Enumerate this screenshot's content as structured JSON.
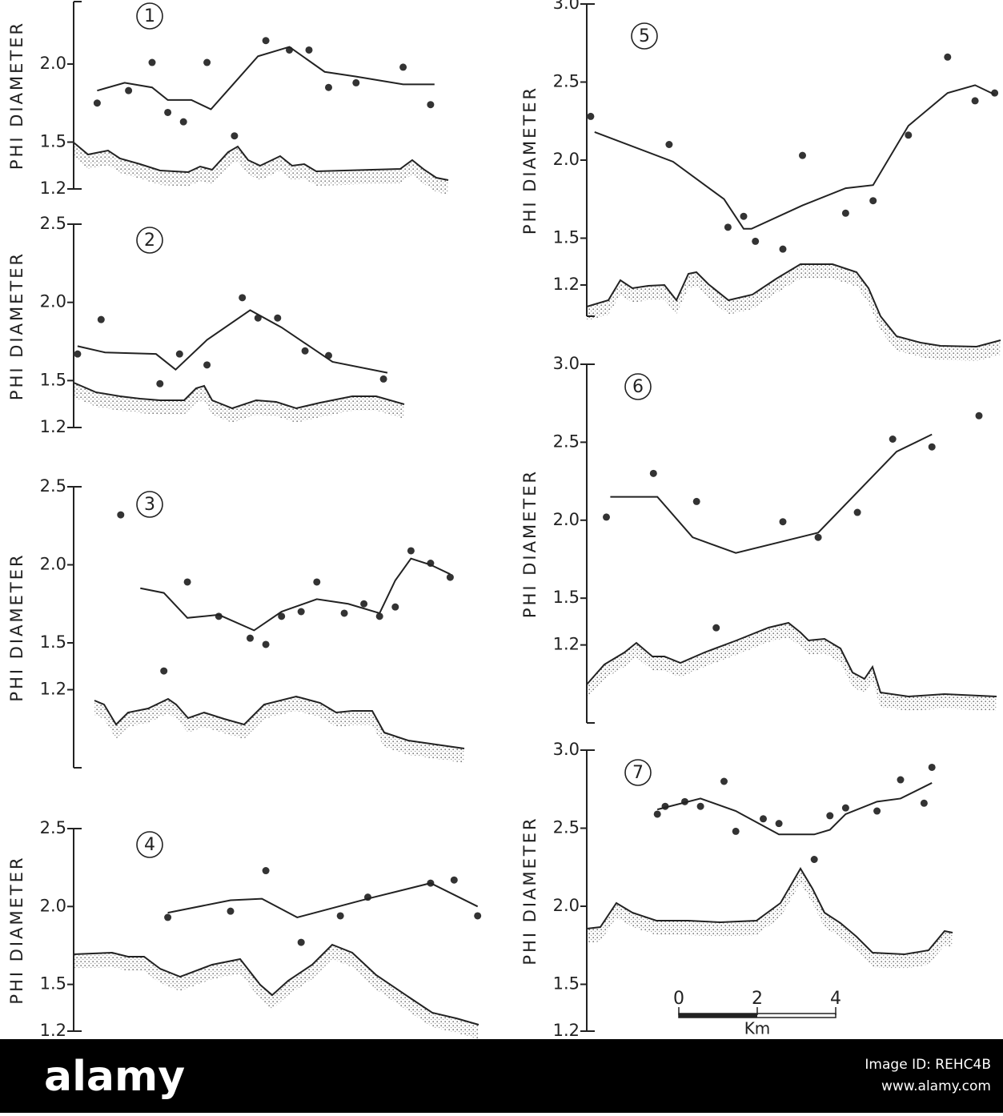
{
  "chart_data": [
    {
      "type": "scatter",
      "label": "1",
      "ylabel": "PHI DIAMETER",
      "xlim": [
        0,
        11
      ],
      "ylim": [
        1.2,
        2.4
      ],
      "yticks": [
        {
          "value": 2,
          "label": "2.0"
        },
        1.5,
        1.2
      ],
      "series": [
        {
          "mode": "markers",
          "color": "#333333",
          "x": [
            0.6,
            1.4,
            2.0,
            2.4,
            2.8,
            3.4,
            4.1,
            4.9,
            5.5,
            6.0,
            6.5,
            7.2,
            8.4,
            9.1
          ],
          "values": [
            1.75,
            1.83,
            2.01,
            1.69,
            1.63,
            2.01,
            1.54,
            2.15,
            2.09,
            2.09,
            1.85,
            1.88,
            1.98,
            1.74
          ]
        },
        {
          "mode": "lines",
          "color": "#222222",
          "x": [
            0.6,
            1.3,
            2.0,
            2.4,
            3.0,
            3.5,
            4.1,
            4.7,
            5.5,
            6.4,
            7.2,
            8.4,
            9.2
          ],
          "values": [
            1.83,
            1.88,
            1.85,
            1.77,
            1.77,
            1.71,
            1.88,
            2.05,
            2.11,
            1.95,
            1.92,
            1.87,
            1.87
          ]
        }
      ]
    },
    {
      "type": "scatter",
      "label": "2",
      "ylabel": "PHI DIAMETER",
      "xlim": [
        0,
        11
      ],
      "ylim": [
        1.2,
        2.5
      ],
      "yticks": [
        2.5,
        {
          "value": 2,
          "label": "2.0"
        },
        1.5,
        1.2
      ],
      "series": [
        {
          "mode": "markers",
          "color": "#333333",
          "x": [
            0.1,
            0.7,
            2.2,
            2.7,
            3.4,
            4.3,
            4.7,
            5.2,
            5.9,
            6.5,
            7.9
          ],
          "values": [
            1.67,
            1.89,
            1.48,
            1.67,
            1.6,
            2.03,
            1.9,
            1.9,
            1.69,
            1.66,
            1.51
          ]
        },
        {
          "mode": "lines",
          "color": "#222222",
          "x": [
            0.1,
            0.8,
            2.1,
            2.6,
            3.4,
            4.5,
            5.3,
            6.6,
            8.0
          ],
          "values": [
            1.72,
            1.68,
            1.67,
            1.57,
            1.76,
            1.95,
            1.84,
            1.62,
            1.55
          ]
        }
      ]
    },
    {
      "type": "scatter",
      "label": "3",
      "ylabel": "PHI DIAMETER",
      "xlim": [
        0,
        11
      ],
      "ylim": [
        0.7,
        2.5
      ],
      "yticks": [
        2.5,
        {
          "value": 2,
          "label": "2.0"
        },
        1.5,
        1.2
      ],
      "series": [
        {
          "mode": "markers",
          "color": "#333333",
          "x": [
            1.2,
            2.3,
            2.9,
            3.7,
            4.5,
            4.9,
            5.3,
            5.8,
            6.2,
            6.9,
            7.4,
            7.8,
            8.2,
            8.6,
            9.1,
            9.6
          ],
          "values": [
            2.32,
            1.32,
            1.89,
            1.67,
            1.53,
            1.49,
            1.67,
            1.7,
            1.89,
            1.69,
            1.75,
            1.67,
            1.73,
            2.09,
            2.01,
            1.92
          ]
        },
        {
          "mode": "lines",
          "color": "#222222",
          "x": [
            1.7,
            2.3,
            2.9,
            3.7,
            4.6,
            5.3,
            6.2,
            7.0,
            7.8,
            8.2,
            8.6,
            9.1,
            9.6
          ],
          "values": [
            1.85,
            1.82,
            1.66,
            1.68,
            1.58,
            1.7,
            1.78,
            1.75,
            1.69,
            1.9,
            2.04,
            2.0,
            1.94
          ]
        }
      ]
    },
    {
      "type": "scatter",
      "label": "4",
      "ylabel": "PHI DIAMETER",
      "xlim": [
        0,
        11
      ],
      "ylim": [
        1.2,
        2.5
      ],
      "yticks": [
        2.5,
        {
          "value": 2,
          "label": "2.0"
        },
        1.5,
        1.2
      ],
      "series": [
        {
          "mode": "markers",
          "color": "#333333",
          "x": [
            2.4,
            4.0,
            4.9,
            5.8,
            6.8,
            7.5,
            9.1,
            9.7,
            10.3
          ],
          "values": [
            1.93,
            1.97,
            2.23,
            1.77,
            1.94,
            2.06,
            2.15,
            2.17,
            1.94
          ]
        },
        {
          "mode": "lines",
          "color": "#222222",
          "x": [
            2.4,
            4.0,
            4.8,
            5.7,
            7.5,
            9.1,
            10.3
          ],
          "values": [
            1.96,
            2.04,
            2.05,
            1.93,
            2.05,
            2.15,
            2.0
          ]
        }
      ]
    },
    {
      "type": "scatter",
      "label": "5",
      "ylabel": "PHI DIAMETER",
      "xlim": [
        0,
        11
      ],
      "ylim": [
        1.0,
        3.0
      ],
      "yticks": [
        {
          "value": 3,
          "label": "3.0"
        },
        2.5,
        {
          "value": 2,
          "label": "2.0"
        },
        1.5,
        1.2
      ],
      "series": [
        {
          "mode": "markers",
          "color": "#333333",
          "x": [
            0.1,
            2.1,
            3.6,
            4.0,
            4.3,
            5.0,
            5.5,
            6.6,
            7.3,
            8.2,
            9.2,
            9.9,
            10.4
          ],
          "values": [
            2.28,
            2.1,
            1.57,
            1.64,
            1.48,
            1.43,
            2.03,
            1.66,
            1.74,
            2.16,
            2.66,
            2.38,
            2.43
          ]
        },
        {
          "mode": "lines",
          "color": "#222222",
          "x": [
            0.2,
            2.2,
            3.5,
            4.0,
            4.2,
            5.5,
            6.6,
            7.3,
            8.2,
            9.2,
            9.9,
            10.4
          ],
          "values": [
            2.18,
            1.99,
            1.75,
            1.56,
            1.56,
            1.71,
            1.82,
            1.84,
            2.22,
            2.43,
            2.48,
            2.42
          ]
        }
      ]
    },
    {
      "type": "scatter",
      "label": "6",
      "ylabel": "PHI DIAMETER",
      "xlim": [
        0,
        11
      ],
      "ylim": [
        0.7,
        3.0
      ],
      "yticks": [
        {
          "value": 3,
          "label": "3.0"
        },
        2.5,
        {
          "value": 2,
          "label": "2.0"
        },
        1.5,
        1.2
      ],
      "series": [
        {
          "mode": "markers",
          "color": "#333333",
          "x": [
            0.5,
            1.7,
            2.8,
            3.3,
            5.0,
            5.9,
            6.9,
            7.8,
            8.8,
            10.0
          ],
          "values": [
            2.02,
            2.3,
            2.12,
            1.31,
            1.99,
            1.89,
            2.05,
            2.52,
            2.47,
            2.67
          ]
        },
        {
          "mode": "lines",
          "color": "#222222",
          "x": [
            0.6,
            1.8,
            2.7,
            3.8,
            5.9,
            7.9,
            8.8
          ],
          "values": [
            2.15,
            2.15,
            1.89,
            1.79,
            1.92,
            2.44,
            2.55
          ]
        }
      ]
    },
    {
      "type": "scatter",
      "label": "7",
      "ylabel": "PHI DIAMETER",
      "xlim": [
        0,
        11
      ],
      "ylim": [
        1.2,
        3.0
      ],
      "yticks": [
        {
          "value": 3,
          "label": "3.0"
        },
        2.5,
        {
          "value": 2,
          "label": "2.0"
        },
        1.5,
        1.2
      ],
      "series": [
        {
          "mode": "markers",
          "color": "#333333",
          "x": [
            1.8,
            2.0,
            2.5,
            2.9,
            3.5,
            3.8,
            4.5,
            4.9,
            5.8,
            6.2,
            6.6,
            7.4,
            8.0,
            8.6,
            8.8
          ],
          "values": [
            2.59,
            2.64,
            2.67,
            2.64,
            2.8,
            2.48,
            2.56,
            2.53,
            2.3,
            2.58,
            2.63,
            2.61,
            2.81,
            2.66,
            2.89
          ]
        },
        {
          "mode": "lines",
          "color": "#222222",
          "x": [
            1.8,
            2.9,
            3.8,
            4.9,
            5.8,
            6.2,
            6.6,
            7.4,
            8.0,
            8.8
          ],
          "values": [
            2.62,
            2.69,
            2.61,
            2.46,
            2.46,
            2.49,
            2.59,
            2.67,
            2.69,
            2.79
          ]
        }
      ],
      "scale_bar": {
        "ticks": [
          0,
          2,
          4
        ],
        "unit": "Km"
      }
    }
  ],
  "watermark": {
    "logo": "alamy",
    "image_id": "Image ID: REHC4B",
    "url": "www.alamy.com"
  }
}
